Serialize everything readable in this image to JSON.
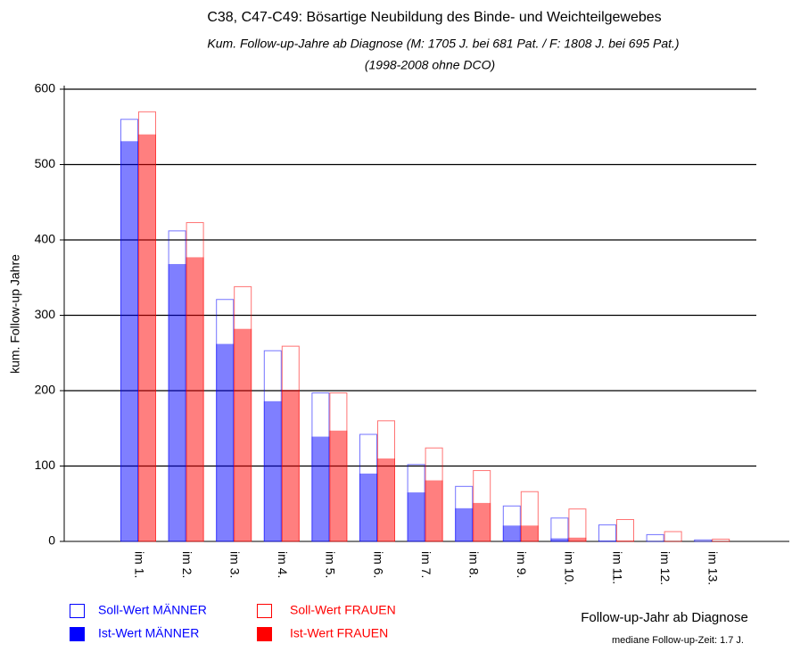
{
  "chart_data": {
    "type": "bar",
    "title": "C38, C47-C49: Bösartige Neubildung des Binde- und Weichteilgewebes",
    "subtitle": "Kum. Follow-up-Jahre ab Diagnose (M: 1705 J. bei 681 Pat. / F:  1808 J. bei   695 Pat.)",
    "subtitle2": "(1998-2008 ohne DCO)",
    "y_label": "kum. Follow-up Jahre",
    "x_label": "Follow-up-Jahr ab Diagnose",
    "note": "mediane Follow-up-Zeit: 1.7 J.",
    "categories": [
      "im 1.",
      "im 2.",
      "im 3.",
      "im 4.",
      "im 5.",
      "im 6.",
      "im 7.",
      "im 8.",
      "im 9.",
      "im 10.",
      "im 11.",
      "im 12.",
      "im 13."
    ],
    "series": [
      {
        "name": "Soll-Wert MÄNNER",
        "color": "#0000ff",
        "style": "outline",
        "group": 0,
        "values": [
          560,
          412,
          321,
          253,
          197,
          142,
          102,
          73,
          47,
          31,
          22,
          9,
          2
        ]
      },
      {
        "name": "Ist-Wert MÄNNER",
        "color": "#0000ff",
        "style": "filled",
        "group": 0,
        "values": [
          531,
          368,
          262,
          186,
          139,
          90,
          65,
          44,
          21,
          4,
          1,
          0,
          0
        ]
      },
      {
        "name": "Soll-Wert FRAUEN",
        "color": "#ff0000",
        "style": "outline",
        "group": 1,
        "values": [
          570,
          423,
          338,
          259,
          197,
          160,
          124,
          94,
          66,
          43,
          29,
          13,
          3
        ]
      },
      {
        "name": "Ist-Wert FRAUEN",
        "color": "#ff0000",
        "style": "filled",
        "group": 1,
        "values": [
          540,
          377,
          282,
          201,
          147,
          110,
          81,
          51,
          21,
          5,
          1,
          0,
          0
        ]
      }
    ],
    "ylim": [
      0,
      600
    ],
    "yticks": [
      0,
      100,
      200,
      300,
      400,
      500,
      600
    ],
    "grid": true
  }
}
